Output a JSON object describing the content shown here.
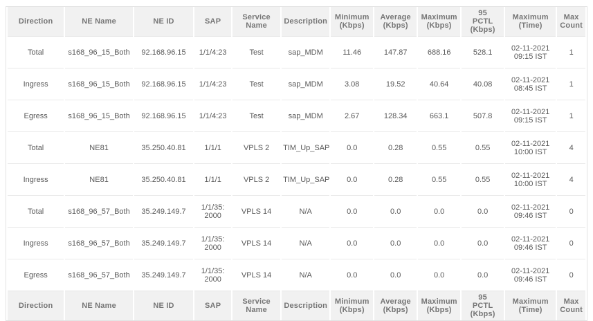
{
  "colors": {
    "page_background": "#ffffff",
    "header_background": "#f1f1f1",
    "table_border": "#e2e2e2",
    "row_divider": "#e9e9e9",
    "header_text": "#757575",
    "cell_text": "#585858"
  },
  "table": {
    "columns": [
      {
        "key": "direction",
        "label": "Direction"
      },
      {
        "key": "ne-name",
        "label": "NE Name"
      },
      {
        "key": "ne-id",
        "label": "NE ID"
      },
      {
        "key": "sap",
        "label": "SAP"
      },
      {
        "key": "service-name",
        "label": "Service Name"
      },
      {
        "key": "description",
        "label": "Description"
      },
      {
        "key": "minimum-kbps",
        "label": "Minimum\n(Kbps)"
      },
      {
        "key": "average-kbps",
        "label": "Average\n(Kbps)"
      },
      {
        "key": "maximum-kbps",
        "label": "Maximum\n(Kbps)"
      },
      {
        "key": "pctl-95-kbps",
        "label": "95\nPCTL\n(Kbps)"
      },
      {
        "key": "maximum-time",
        "label": "Maximum\n(Time)"
      },
      {
        "key": "max-count",
        "label": "Max\nCount"
      }
    ],
    "rows": [
      [
        "Total",
        "s168_96_15_Both",
        "92.168.96.15",
        "1/1/4:23",
        "Test",
        "sap_MDM",
        "11.46",
        "147.87",
        "688.16",
        "528.1",
        "02-11-2021\n09:15 IST",
        "1"
      ],
      [
        "Ingress",
        "s168_96_15_Both",
        "92.168.96.15",
        "1/1/4:23",
        "Test",
        "sap_MDM",
        "3.08",
        "19.52",
        "40.64",
        "40.08",
        "02-11-2021\n08:45 IST",
        "1"
      ],
      [
        "Egress",
        "s168_96_15_Both",
        "92.168.96.15",
        "1/1/4:23",
        "Test",
        "sap_MDM",
        "2.67",
        "128.34",
        "663.1",
        "507.8",
        "02-11-2021\n09:15 IST",
        "1"
      ],
      [
        "Total",
        "NE81",
        "35.250.40.81",
        "1/1/1",
        "VPLS 2",
        "TIM_Up_SAP",
        "0.0",
        "0.28",
        "0.55",
        "0.55",
        "02-11-2021\n10:00 IST",
        "4"
      ],
      [
        "Ingress",
        "NE81",
        "35.250.40.81",
        "1/1/1",
        "VPLS 2",
        "TIM_Up_SAP",
        "0.0",
        "0.28",
        "0.55",
        "0.55",
        "02-11-2021\n10:00 IST",
        "4"
      ],
      [
        "Total",
        "s168_96_57_Both",
        "35.249.149.7",
        "1/1/35:\n2000",
        "VPLS 14",
        "N/A",
        "0.0",
        "0.0",
        "0.0",
        "0.0",
        "02-11-2021\n09:46 IST",
        "0"
      ],
      [
        "Ingress",
        "s168_96_57_Both",
        "35.249.149.7",
        "1/1/35:\n2000",
        "VPLS 14",
        "N/A",
        "0.0",
        "0.0",
        "0.0",
        "0.0",
        "02-11-2021\n09:46 IST",
        "0"
      ],
      [
        "Egress",
        "s168_96_57_Both",
        "35.249.149.7",
        "1/1/35:\n2000",
        "VPLS 14",
        "N/A",
        "0.0",
        "0.0",
        "0.0",
        "0.0",
        "02-11-2021\n09:46 IST",
        "0"
      ]
    ]
  }
}
